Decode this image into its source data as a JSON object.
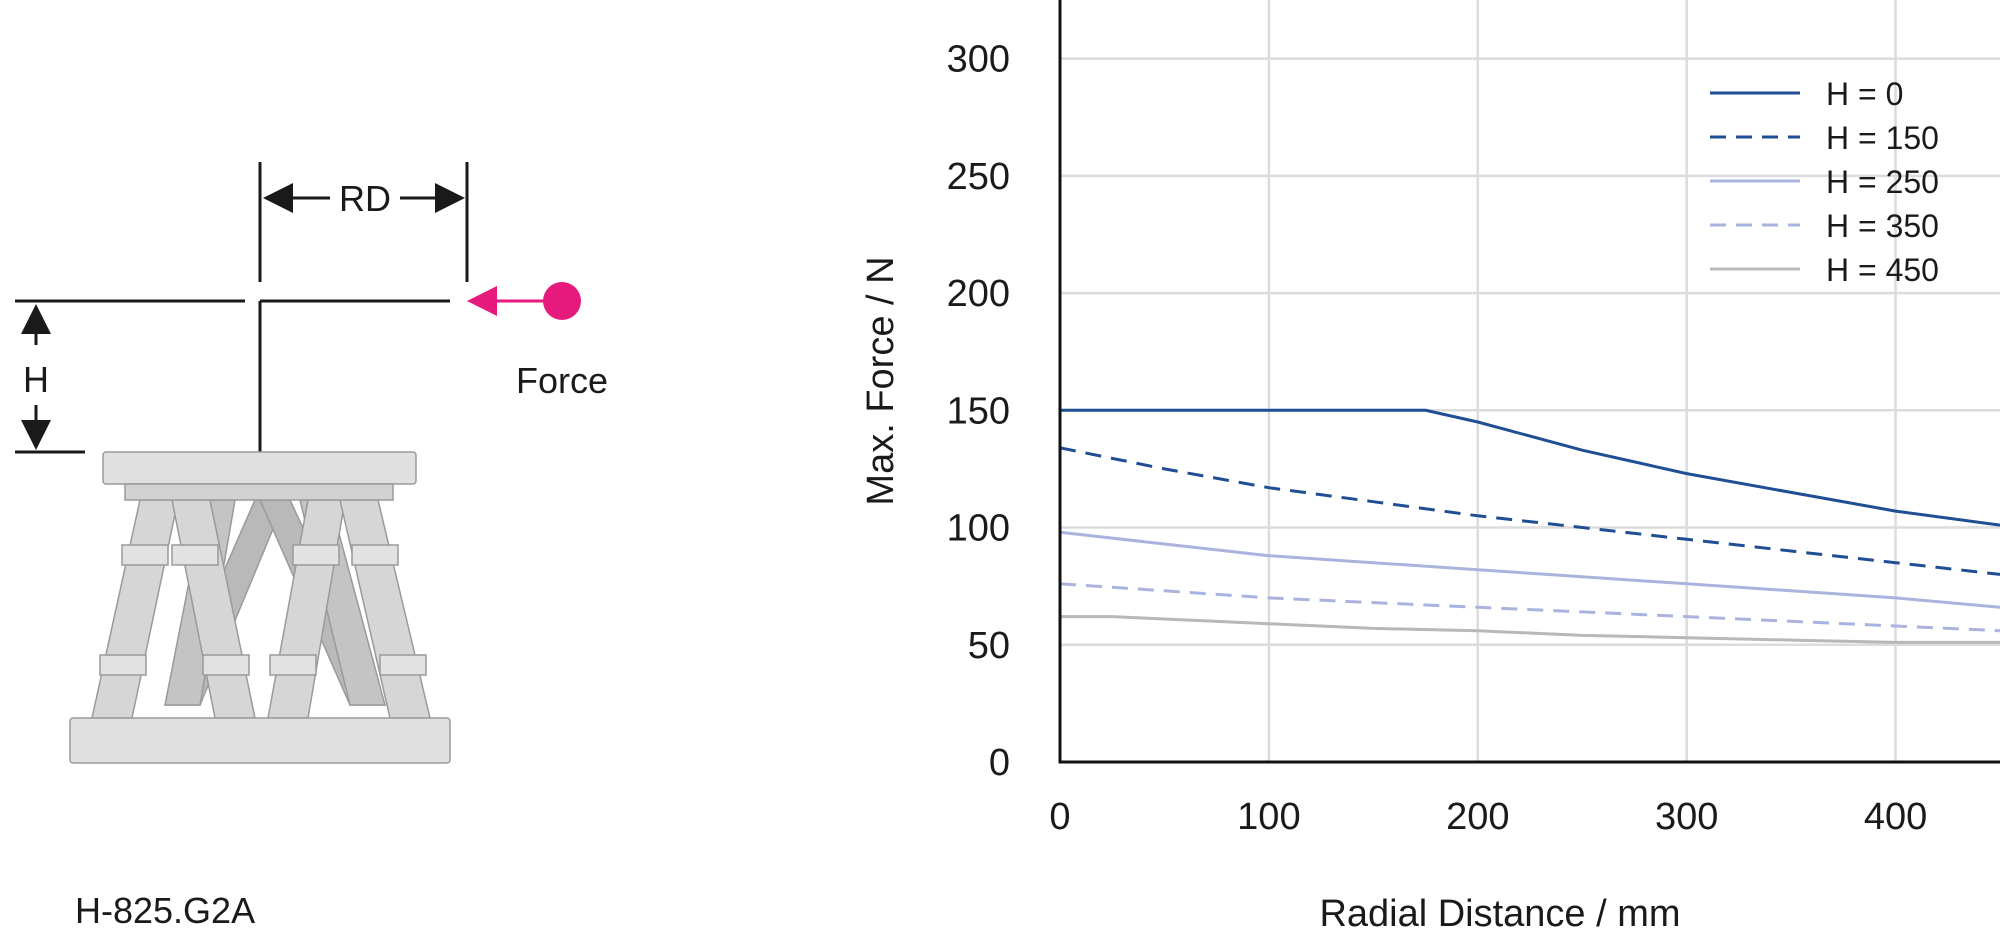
{
  "diagram": {
    "rd_label": "RD",
    "h_label": "H",
    "force_label": "Force",
    "model_label": "H-825.G2A",
    "force_color": "#e6197d"
  },
  "chart_data": {
    "type": "line",
    "xlabel": "Radial Distance / mm",
    "ylabel": "Max. Force / N",
    "xlim": [
      0,
      450
    ],
    "ylim": [
      0,
      325
    ],
    "x_ticks": [
      0,
      100,
      200,
      300,
      400
    ],
    "y_ticks": [
      0,
      50,
      100,
      150,
      200,
      250,
      300
    ],
    "grid": true,
    "legend_position": "top-right",
    "series": [
      {
        "name": "H = 0",
        "color": "#1f4e94",
        "dash": "solid",
        "x": [
          0,
          175,
          200,
          250,
          300,
          350,
          400,
          450
        ],
        "y": [
          150,
          150,
          145,
          133,
          123,
          115,
          107,
          101
        ]
      },
      {
        "name": "H = 150",
        "color": "#1f4e94",
        "dash": "dashed",
        "x": [
          0,
          50,
          100,
          150,
          200,
          250,
          300,
          350,
          400,
          450
        ],
        "y": [
          134,
          125,
          117,
          111,
          105,
          100,
          95,
          90,
          85,
          80
        ]
      },
      {
        "name": "H = 250",
        "color": "#a9b3dd",
        "dash": "solid",
        "x": [
          0,
          50,
          100,
          150,
          200,
          250,
          300,
          350,
          400,
          450
        ],
        "y": [
          98,
          93,
          88,
          85,
          82,
          79,
          76,
          73,
          70,
          66
        ]
      },
      {
        "name": "H = 350",
        "color": "#a9b3dd",
        "dash": "dashed",
        "x": [
          0,
          50,
          100,
          150,
          200,
          250,
          300,
          350,
          400,
          450
        ],
        "y": [
          76,
          73,
          70,
          68,
          66,
          64,
          62,
          60,
          58,
          56
        ]
      },
      {
        "name": "H = 450",
        "color": "#b8b8b8",
        "dash": "solid",
        "x": [
          0,
          25,
          50,
          100,
          150,
          200,
          250,
          300,
          350,
          400,
          450
        ],
        "y": [
          62,
          62,
          61,
          59,
          57,
          56,
          54,
          53,
          52,
          51,
          51
        ]
      }
    ]
  }
}
